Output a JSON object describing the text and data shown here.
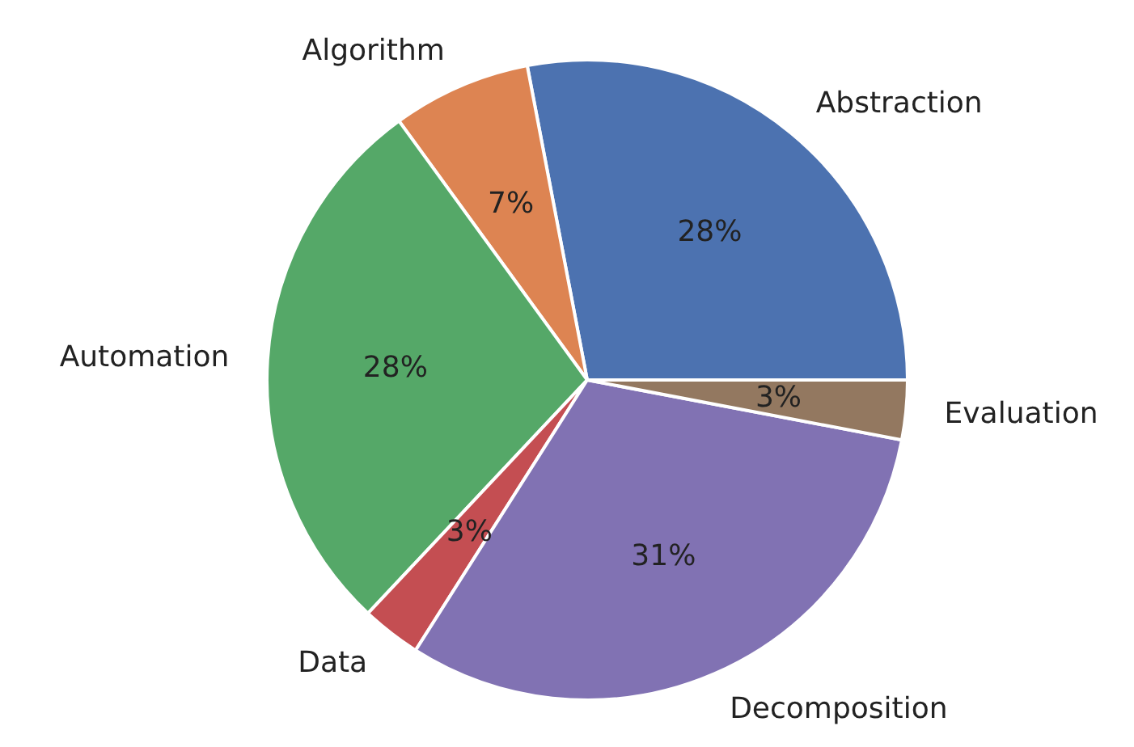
{
  "chart_data": {
    "type": "pie",
    "categories": [
      "Abstraction",
      "Algorithm",
      "Automation",
      "Data",
      "Decomposition",
      "Evaluation"
    ],
    "values": [
      28,
      7,
      28,
      3,
      31,
      3
    ],
    "value_labels": [
      "28%",
      "7%",
      "28%",
      "3%",
      "31%",
      "3%"
    ],
    "colors": [
      "#4c72b0",
      "#dd8452",
      "#55a868",
      "#c44e52",
      "#8172b3",
      "#937860"
    ]
  }
}
